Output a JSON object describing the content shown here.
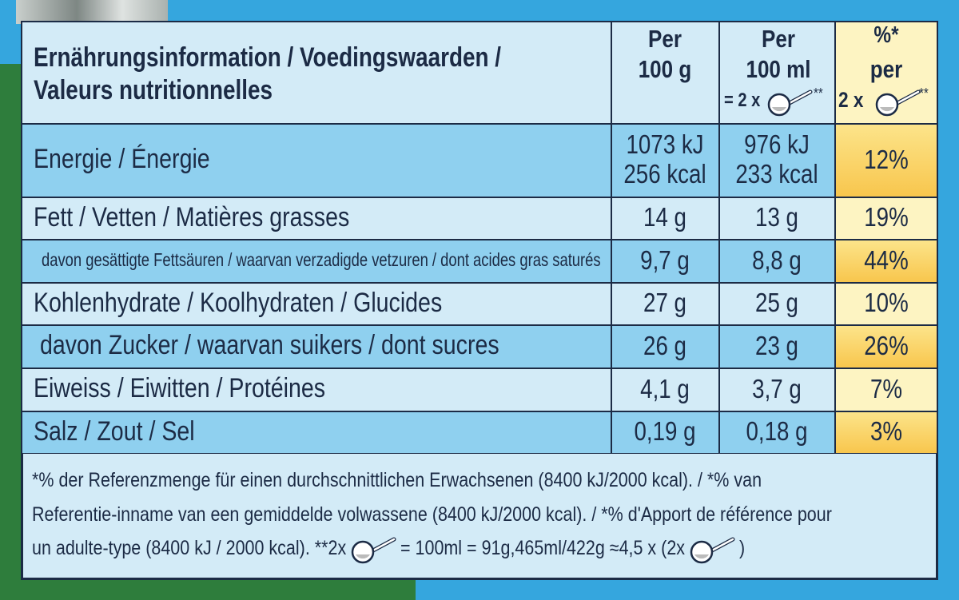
{
  "header": {
    "title_lines": [
      "Ernährungsinformation / Voedingswaarden /",
      "Valeurs nutritionnelles"
    ],
    "per_100g_lines": [
      "Per",
      "100 g"
    ],
    "per_100ml_lines": [
      "Per",
      "100 ml",
      "= 2 x"
    ],
    "per_100ml_note": "**",
    "percent_lines": [
      "%*",
      "per",
      "2 x"
    ],
    "percent_note": "**"
  },
  "rows": [
    {
      "label": "Energie / Énergie",
      "per_100g": [
        "1073 kJ",
        "256 kcal"
      ],
      "per_100ml": [
        "976 kJ",
        "233 kcal"
      ],
      "percent": "12%"
    },
    {
      "label": "Fett / Vetten / Matières grasses",
      "per_100g": [
        "14 g"
      ],
      "per_100ml": [
        "13 g"
      ],
      "percent": "19%"
    },
    {
      "label": "davon gesättigte Fettsäuren / waarvan verzadigde vetzuren / dont acides gras saturés",
      "per_100g": [
        "9,7 g"
      ],
      "per_100ml": [
        "8,8 g"
      ],
      "percent": "44%"
    },
    {
      "label": "Kohlenhydrate / Koolhydraten / Glucides",
      "per_100g": [
        "27 g"
      ],
      "per_100ml": [
        "25 g"
      ],
      "percent": "10%"
    },
    {
      "label": "davon Zucker / waarvan suikers / dont sucres",
      "per_100g": [
        "26 g"
      ],
      "per_100ml": [
        "23 g"
      ],
      "percent": "26%"
    },
    {
      "label": "Eiweiss / Eiwitten / Protéines",
      "per_100g": [
        "4,1 g"
      ],
      "per_100ml": [
        "3,7 g"
      ],
      "percent": "7%"
    },
    {
      "label": "Salz / Zout / Sel",
      "per_100g": [
        "0,19 g"
      ],
      "per_100ml": [
        "0,18 g"
      ],
      "percent": "3%"
    }
  ],
  "footnote": {
    "lines": [
      "*% der Referenzmenge für einen durchschnittlichen Erwachsenen (8400 kJ/2000 kcal). / *% van",
      "Referentie-inname van een gemiddelde volwassene (8400 kJ/2000 kcal). / *% d'Apport de référence pour"
    ],
    "last_line": [
      "un adulte-type (8400 kJ / 2000 kcal).  **2x",
      "= 100ml = 91g,465ml/422g ≈4,5 x (2x",
      ")"
    ]
  }
}
